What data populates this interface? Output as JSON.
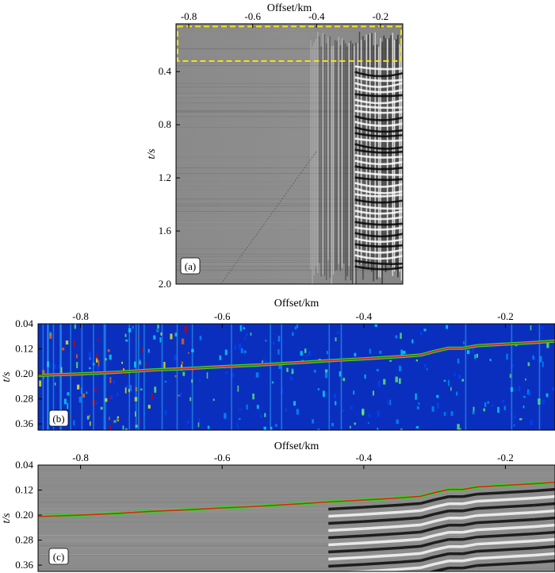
{
  "colors": {
    "seismic_background": "#8c8c8c",
    "heatmap_background": "#0a2fbf",
    "highlight_box": "#f2e51a",
    "pick_line": "#e02020",
    "pick_line_halo": "#2fd72f"
  },
  "chart_data": [
    {
      "id": "a",
      "type": "heatmap",
      "title": "",
      "panel_label": "(a)",
      "xlabel": "Offset/km",
      "ylabel": "t/s",
      "xlim": [
        -0.84,
        -0.13
      ],
      "ylim": [
        2.0,
        0.04
      ],
      "xticks": [
        -0.8,
        -0.6,
        -0.4,
        -0.2
      ],
      "xtick_labels": [
        "-0.8",
        "-0.6",
        "-0.4",
        "-0.2"
      ],
      "yticks": [
        0.4,
        0.8,
        1.2,
        1.6,
        2.0
      ],
      "ytick_labels": [
        "0.4",
        "0.8",
        "1.2",
        "1.6",
        "2.0"
      ],
      "x_axis_position": "top",
      "colormap": "gray seismic wiggle density",
      "highlight_region": {
        "x": [
          -0.835,
          -0.135
        ],
        "y": [
          0.06,
          0.32
        ],
        "style": "dashed"
      }
    },
    {
      "id": "b",
      "type": "heatmap",
      "title": "",
      "panel_label": "(b)",
      "xlabel": "Offset/km",
      "ylabel": "t/s",
      "xlim": [
        -0.86,
        -0.13
      ],
      "ylim": [
        0.38,
        0.04
      ],
      "xticks": [
        -0.8,
        -0.6,
        -0.4,
        -0.2
      ],
      "xtick_labels": [
        "-0.8",
        "-0.6",
        "-0.4",
        "-0.2"
      ],
      "yticks": [
        0.04,
        0.12,
        0.2,
        0.28,
        0.36
      ],
      "ytick_labels": [
        "0.04",
        "0.12",
        "0.20",
        "0.28",
        "0.36"
      ],
      "x_axis_position": "top",
      "colormap": "jet",
      "pick_curve": {
        "x": [
          -0.86,
          -0.8,
          -0.75,
          -0.7,
          -0.65,
          -0.6,
          -0.55,
          -0.5,
          -0.45,
          -0.4,
          -0.35,
          -0.32,
          -0.3,
          -0.28,
          -0.26,
          -0.24,
          -0.2,
          -0.16,
          -0.13
        ],
        "y": [
          0.205,
          0.2,
          0.195,
          0.188,
          0.183,
          0.177,
          0.172,
          0.165,
          0.158,
          0.152,
          0.145,
          0.14,
          0.128,
          0.118,
          0.118,
          0.11,
          0.105,
          0.1,
          0.095
        ]
      }
    },
    {
      "id": "c",
      "type": "heatmap",
      "title": "",
      "panel_label": "(c)",
      "xlabel": "Offset/km",
      "ylabel": "t/s",
      "xlim": [
        -0.86,
        -0.13
      ],
      "ylim": [
        0.38,
        0.04
      ],
      "xticks": [
        -0.8,
        -0.6,
        -0.4,
        -0.2
      ],
      "xtick_labels": [
        "-0.8",
        "-0.6",
        "-0.4",
        "-0.2"
      ],
      "yticks": [
        0.04,
        0.12,
        0.2,
        0.28,
        0.36
      ],
      "ytick_labels": [
        "0.04",
        "0.12",
        "0.20",
        "0.28",
        "0.36"
      ],
      "x_axis_position": "top",
      "colormap": "gray seismic wiggle density",
      "pick_curve": {
        "x": [
          -0.86,
          -0.8,
          -0.75,
          -0.7,
          -0.65,
          -0.6,
          -0.55,
          -0.5,
          -0.45,
          -0.4,
          -0.35,
          -0.32,
          -0.3,
          -0.28,
          -0.26,
          -0.24,
          -0.2,
          -0.16,
          -0.13
        ],
        "y": [
          0.205,
          0.2,
          0.195,
          0.188,
          0.183,
          0.177,
          0.172,
          0.165,
          0.158,
          0.152,
          0.145,
          0.14,
          0.128,
          0.118,
          0.118,
          0.11,
          0.105,
          0.1,
          0.095
        ]
      }
    }
  ]
}
